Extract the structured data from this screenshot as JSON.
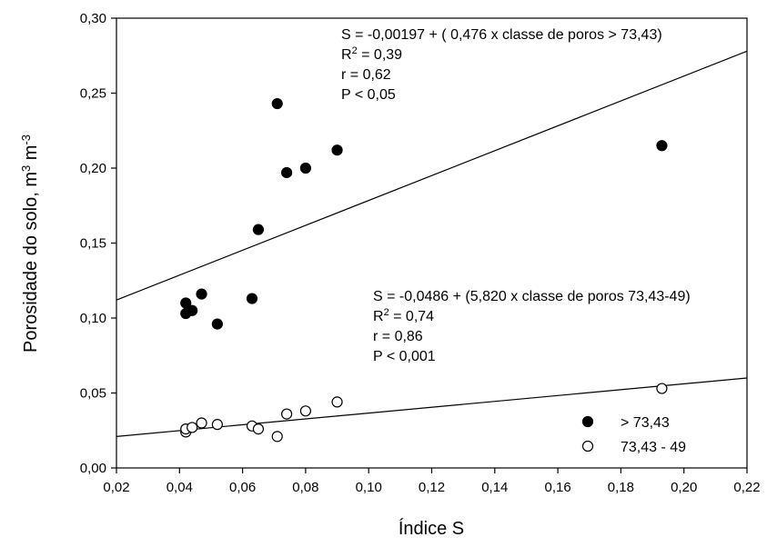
{
  "chart_data": {
    "type": "scatter",
    "xlabel": "Índice S",
    "ylabel": {
      "prefix": "Porosidade do solo, m",
      "sup1": "3",
      "mid": " m",
      "sup2": "-3"
    },
    "xlim": [
      0.02,
      0.22
    ],
    "ylim": [
      0.0,
      0.3
    ],
    "xticks": [
      "0,02",
      "0,04",
      "0,06",
      "0,08",
      "0,10",
      "0,12",
      "0,14",
      "0,16",
      "0,18",
      "0,20",
      "0,22"
    ],
    "yticks": [
      "0,00",
      "0,05",
      "0,10",
      "0,15",
      "0,20",
      "0,25",
      "0,30"
    ],
    "legend_position": "bottom-right",
    "series": [
      {
        "name": "> 73,43",
        "marker": "filled-circle",
        "color": "#000000",
        "points": [
          [
            0.042,
            0.11
          ],
          [
            0.042,
            0.103
          ],
          [
            0.044,
            0.105
          ],
          [
            0.047,
            0.116
          ],
          [
            0.052,
            0.096
          ],
          [
            0.063,
            0.113
          ],
          [
            0.065,
            0.159
          ],
          [
            0.071,
            0.243
          ],
          [
            0.074,
            0.197
          ],
          [
            0.08,
            0.2
          ],
          [
            0.09,
            0.212
          ],
          [
            0.193,
            0.215
          ]
        ],
        "fit": {
          "x": [
            0.02,
            0.22
          ],
          "y": [
            0.112,
            0.278
          ]
        }
      },
      {
        "name": "73,43 - 49",
        "marker": "open-circle",
        "color": "#000000",
        "points": [
          [
            0.042,
            0.024
          ],
          [
            0.042,
            0.026
          ],
          [
            0.044,
            0.027
          ],
          [
            0.047,
            0.03
          ],
          [
            0.052,
            0.029
          ],
          [
            0.063,
            0.028
          ],
          [
            0.065,
            0.026
          ],
          [
            0.071,
            0.021
          ],
          [
            0.074,
            0.036
          ],
          [
            0.08,
            0.038
          ],
          [
            0.09,
            0.044
          ],
          [
            0.193,
            0.053
          ]
        ],
        "fit": {
          "x": [
            0.02,
            0.22
          ],
          "y": [
            0.021,
            0.06
          ]
        }
      }
    ],
    "annotations": [
      {
        "lines": [
          {
            "text": "S = -0,00197 + ( 0,476 x classe de poros > 73,43)"
          },
          {
            "text": "R",
            "sup": "2",
            "after": " = 0,39"
          },
          {
            "text": "r = 0,62"
          },
          {
            "text": "P < 0,05"
          }
        ]
      },
      {
        "lines": [
          {
            "text": "S = -0,0486 + (5,820 x classe de poros 73,43-49)"
          },
          {
            "text": "R",
            "sup": "2",
            "after": " = 0,74"
          },
          {
            "text": "r = 0,86"
          },
          {
            "text": "P < 0,001"
          }
        ]
      }
    ]
  }
}
